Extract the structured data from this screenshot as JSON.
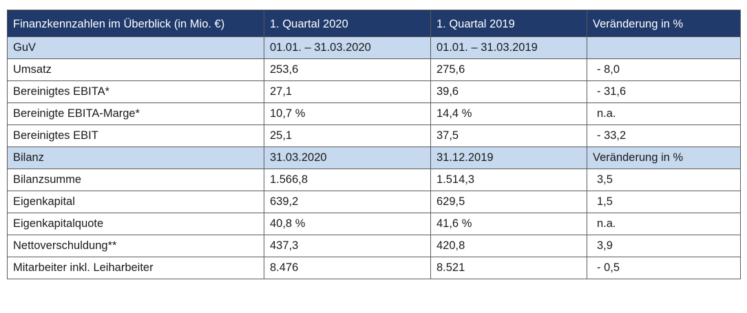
{
  "table": {
    "header": [
      "Finanzkennzahlen im Überblick (in Mio. €)",
      "1. Quartal 2020",
      "1. Quartal 2019",
      "Veränderung in %"
    ],
    "rows": [
      {
        "type": "section",
        "cells": [
          "GuV",
          "01.01. – 31.03.2020",
          "01.01. – 31.03.2019",
          ""
        ]
      },
      {
        "type": "data",
        "cells": [
          "Umsatz",
          "253,6",
          "275,6",
          "- 8,0"
        ]
      },
      {
        "type": "data",
        "cells": [
          "Bereinigtes EBITA*",
          "27,1",
          "39,6",
          "- 31,6"
        ]
      },
      {
        "type": "data",
        "cells": [
          "Bereinigte EBITA-Marge*",
          "10,7 %",
          "14,4 %",
          "n.a."
        ]
      },
      {
        "type": "data",
        "cells": [
          "Bereinigtes EBIT",
          "25,1",
          "37,5",
          "- 33,2"
        ]
      },
      {
        "type": "section",
        "cells": [
          "Bilanz",
          "31.03.2020",
          "31.12.2019",
          "Veränderung in %"
        ]
      },
      {
        "type": "data",
        "cells": [
          "Bilanzsumme",
          "1.566,8",
          "1.514,3",
          "3,5"
        ]
      },
      {
        "type": "data",
        "cells": [
          "Eigenkapital",
          "639,2",
          "629,5",
          "1,5"
        ]
      },
      {
        "type": "data",
        "cells": [
          "Eigenkapitalquote",
          "40,8 %",
          "41,6 %",
          "n.a."
        ]
      },
      {
        "type": "data",
        "cells": [
          "Nettoverschuldung**",
          "437,3",
          "420,8",
          "3,9"
        ]
      },
      {
        "type": "data",
        "cells": [
          "Mitarbeiter inkl. Leiharbeiter",
          "8.476",
          "8.521",
          "- 0,5"
        ]
      }
    ]
  },
  "colors": {
    "header_bg": "#1f3a6b",
    "header_text": "#ffffff",
    "section_bg": "#c6d9ef",
    "border": "#5a5a5a"
  }
}
